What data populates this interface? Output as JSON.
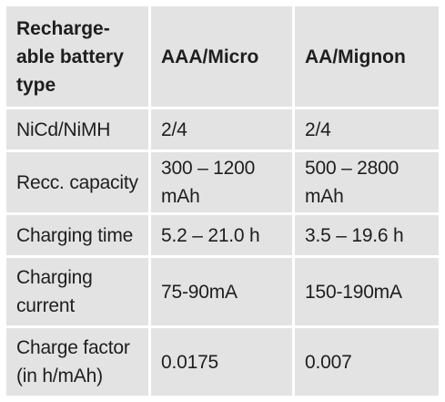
{
  "table": {
    "header": [
      "Recharge-\nable battery\ntype",
      "AAA/Micro",
      "AA/Mignon"
    ],
    "rows": [
      [
        "NiCd/NiMH",
        "2/4",
        "2/4"
      ],
      [
        "Recc. capacity",
        "300 – 1200\nmAh",
        "500 – 2800\nmAh"
      ],
      [
        "Charging time",
        "5.2 – 21.0 h",
        "3.5 – 19.6 h"
      ],
      [
        "Charging\ncurrent",
        "75-90mA",
        "150-190mA"
      ],
      [
        "Charge factor\n(in h/mAh)",
        "0.0175",
        "0.007"
      ]
    ]
  }
}
